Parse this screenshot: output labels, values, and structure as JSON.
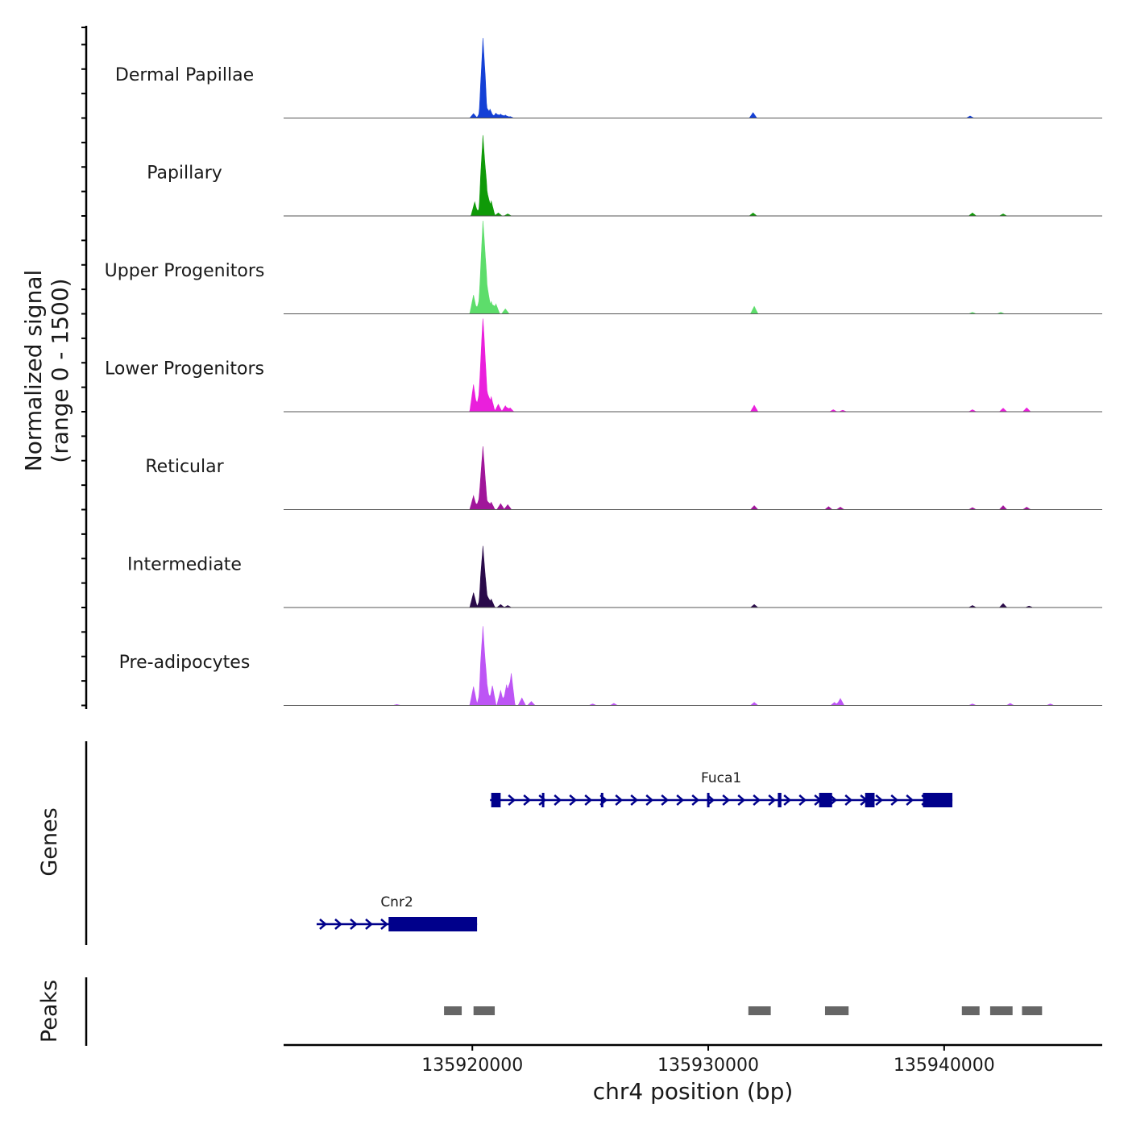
{
  "chart_data": {
    "type": "area",
    "title": "",
    "xlabel": "chr4 position (bp)",
    "x_range": [
      135912000,
      135946700
    ],
    "x_ticks": [
      {
        "value": 135920000,
        "label": "135920000"
      },
      {
        "value": 135930000,
        "label": "135930000"
      },
      {
        "value": 135940000,
        "label": "135940000"
      }
    ],
    "coverage": {
      "ylabel_line1": "Normalized signal",
      "ylabel_line2": "(range 0 - 1500)",
      "y_range": [
        0,
        1500
      ],
      "tracks": [
        {
          "name": "Dermal Papillae",
          "color": "#1440d6",
          "peaks": [
            [
              135920050,
              90
            ],
            [
              135920350,
              150
            ],
            [
              135920450,
              1450
            ],
            [
              135920550,
              300
            ],
            [
              135920750,
              180
            ],
            [
              135921000,
              100
            ],
            [
              135921200,
              80
            ],
            [
              135921400,
              60
            ],
            [
              135921600,
              30
            ],
            [
              135931900,
              110
            ],
            [
              135941100,
              40
            ]
          ]
        },
        {
          "name": "Papillary",
          "color": "#0f9a08",
          "peaks": [
            [
              135920100,
              280
            ],
            [
              135920350,
              250
            ],
            [
              135920450,
              1500
            ],
            [
              135920600,
              600
            ],
            [
              135920800,
              300
            ],
            [
              135921100,
              60
            ],
            [
              135921500,
              40
            ],
            [
              135931900,
              60
            ],
            [
              135941200,
              60
            ],
            [
              135942500,
              40
            ]
          ]
        },
        {
          "name": "Upper Progenitors",
          "color": "#5ddd6b",
          "peaks": [
            [
              135920050,
              380
            ],
            [
              135920300,
              300
            ],
            [
              135920450,
              1850
            ],
            [
              135920600,
              700
            ],
            [
              135920800,
              250
            ],
            [
              135921000,
              200
            ],
            [
              135921400,
              100
            ],
            [
              135931950,
              150
            ],
            [
              135941200,
              30
            ],
            [
              135942400,
              30
            ]
          ]
        },
        {
          "name": "Lower Progenitors",
          "color": "#ea1fdc",
          "peaks": [
            [
              135920050,
              550
            ],
            [
              135920300,
              400
            ],
            [
              135920450,
              1900
            ],
            [
              135920600,
              500
            ],
            [
              135920800,
              300
            ],
            [
              135921100,
              150
            ],
            [
              135921400,
              120
            ],
            [
              135921600,
              80
            ],
            [
              135931950,
              130
            ],
            [
              135935300,
              40
            ],
            [
              135935700,
              30
            ],
            [
              135941200,
              40
            ],
            [
              135942500,
              70
            ],
            [
              135943500,
              80
            ]
          ]
        },
        {
          "name": "Reticular",
          "color": "#a0169a",
          "peaks": [
            [
              135920050,
              280
            ],
            [
              135920300,
              250
            ],
            [
              135920450,
              1250
            ],
            [
              135920600,
              220
            ],
            [
              135920800,
              150
            ],
            [
              135921200,
              120
            ],
            [
              135921500,
              100
            ],
            [
              135931950,
              80
            ],
            [
              135935100,
              60
            ],
            [
              135935600,
              50
            ],
            [
              135941200,
              40
            ],
            [
              135942500,
              80
            ],
            [
              135943500,
              50
            ]
          ]
        },
        {
          "name": "Intermediate",
          "color": "#2a0a4a",
          "peaks": [
            [
              135920050,
              300
            ],
            [
              135920350,
              200
            ],
            [
              135920450,
              1150
            ],
            [
              135920600,
              300
            ],
            [
              135920800,
              170
            ],
            [
              135921200,
              60
            ],
            [
              135921500,
              40
            ],
            [
              135931950,
              60
            ],
            [
              135941200,
              40
            ],
            [
              135942500,
              80
            ],
            [
              135943600,
              30
            ]
          ]
        },
        {
          "name": "Pre-adipocytes",
          "color": "#bd55f5",
          "peaks": [
            [
              135920050,
              380
            ],
            [
              135920350,
              320
            ],
            [
              135920450,
              1450
            ],
            [
              135920600,
              500
            ],
            [
              135920850,
              400
            ],
            [
              135921200,
              300
            ],
            [
              135921450,
              420
            ],
            [
              135921650,
              650
            ],
            [
              135922100,
              150
            ],
            [
              135922500,
              80
            ],
            [
              135916800,
              20
            ],
            [
              135925100,
              30
            ],
            [
              135926000,
              40
            ],
            [
              135931950,
              60
            ],
            [
              135935350,
              60
            ],
            [
              135935600,
              140
            ],
            [
              135941200,
              30
            ],
            [
              135942800,
              40
            ],
            [
              135944500,
              30
            ]
          ]
        }
      ]
    },
    "genes": {
      "label": "Genes",
      "items": [
        {
          "name": "Cnr2",
          "start": 135913400,
          "end": 135920200,
          "exons": [
            [
              135916450,
              135920200
            ]
          ],
          "color": "#00008b"
        },
        {
          "name": "Fuca1",
          "start": 135920750,
          "end": 135940350,
          "exons": [
            [
              135920800,
              135921200
            ],
            [
              135922950,
              135923050
            ],
            [
              135925450,
              135925550
            ],
            [
              135929950,
              135930050
            ],
            [
              135932950,
              135933100
            ],
            [
              135934700,
              135935250
            ],
            [
              135936650,
              135937050
            ],
            [
              135939100,
              135940350
            ]
          ],
          "color": "#00008b"
        }
      ]
    },
    "peaks_track": {
      "label": "Peaks",
      "color": "#666666",
      "regions": [
        [
          135918800,
          135919550
        ],
        [
          135920050,
          135920950
        ],
        [
          135931700,
          135932650
        ],
        [
          135934950,
          135935950
        ],
        [
          135940750,
          135941500
        ],
        [
          135941950,
          135942900
        ],
        [
          135943300,
          135944150
        ]
      ]
    }
  }
}
